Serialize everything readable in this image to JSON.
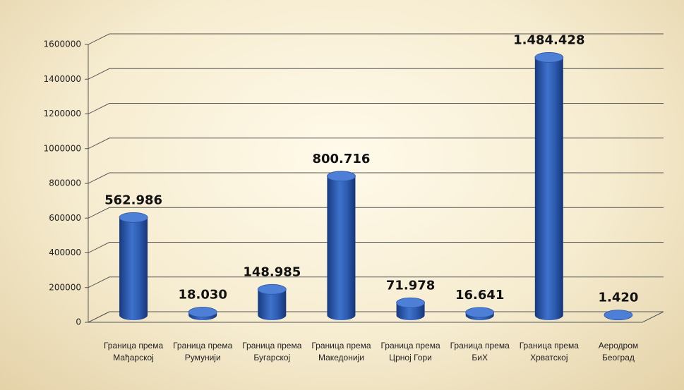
{
  "chart_data": {
    "type": "bar",
    "categories": [
      "Граница према Мађарској",
      "Граница према Румунији",
      "Граница према Бугарској",
      "Граница према Македонији",
      "Граница према Црној Гори",
      "Граница према БиХ",
      "Граница према Хрватској",
      "Аеродром Београд"
    ],
    "values": [
      562986,
      18030,
      148985,
      800716,
      71978,
      16641,
      1484428,
      1420
    ],
    "value_labels": [
      "562.986",
      "18.030",
      "148.985",
      "800.716",
      "71.978",
      "16.641",
      "1.484.428",
      "1.420"
    ],
    "color": "#2f5fb3",
    "ylim": [
      0,
      1600000
    ],
    "yticks": [
      0,
      200000,
      400000,
      600000,
      800000,
      1000000,
      1200000,
      1400000,
      1600000
    ],
    "grid": true
  }
}
